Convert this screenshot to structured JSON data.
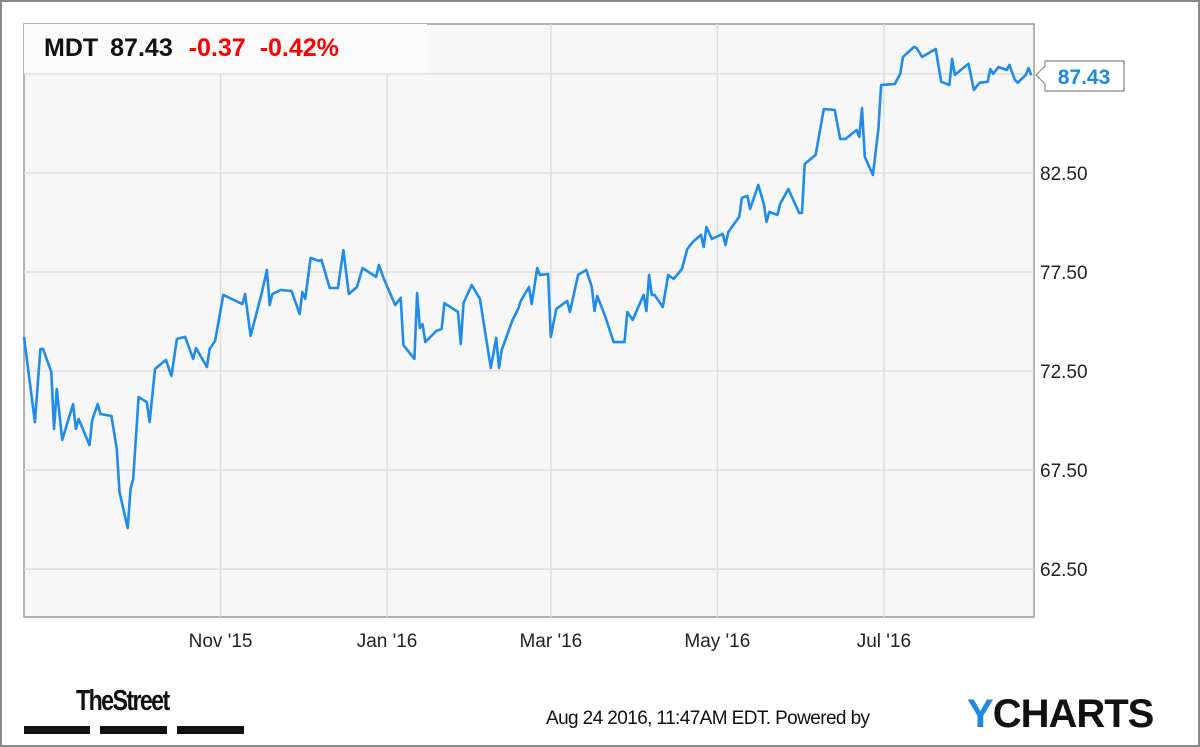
{
  "header": {
    "ticker": "MDT",
    "price": "87.43",
    "change": "-0.37",
    "change_pct": "-0.42%"
  },
  "colors": {
    "line": "#1f8ceb",
    "negative": "#ff0000",
    "plot_bg": "#f7f7f7",
    "grid": "#dddddd",
    "brand_accent": "#1e88e5"
  },
  "footer": {
    "timestamp": "Aug 24 2016, 11:47AM EDT.",
    "powered_by": "Powered by",
    "brand_y": "Y",
    "brand_rest": "CHARTS",
    "source_logo": "TheStreet"
  },
  "chart_data": {
    "type": "line",
    "grid": true,
    "y_axis_side": "right",
    "xlim": [
      "2015-08-21",
      "2016-08-25"
    ],
    "ylim": [
      60.08,
      90.02
    ],
    "x_ticks": [
      {
        "date": "2015-11-01",
        "label": "Nov '15"
      },
      {
        "date": "2016-01-01",
        "label": "Jan '16"
      },
      {
        "date": "2016-03-01",
        "label": "Mar '16"
      },
      {
        "date": "2016-05-01",
        "label": "May '16"
      },
      {
        "date": "2016-07-01",
        "label": "Jul '16"
      }
    ],
    "y_ticks": [
      {
        "value": 62.5,
        "label": "62.50"
      },
      {
        "value": 67.5,
        "label": "67.50"
      },
      {
        "value": 72.5,
        "label": "72.50"
      },
      {
        "value": 77.5,
        "label": "77.50"
      },
      {
        "value": 82.5,
        "label": "82.50"
      },
      {
        "value": 87.5,
        "label": ""
      }
    ],
    "last_value_label": "87.43",
    "series": [
      {
        "points": [
          [
            "2015-08-21",
            74.22
          ],
          [
            "2015-08-25",
            69.92
          ],
          [
            "2015-08-27",
            73.61
          ],
          [
            "2015-08-28",
            73.61
          ],
          [
            "2015-08-31",
            72.45
          ],
          [
            "2015-09-01",
            69.57
          ],
          [
            "2015-09-02",
            71.59
          ],
          [
            "2015-09-04",
            69.02
          ],
          [
            "2015-09-08",
            70.83
          ],
          [
            "2015-09-09",
            69.57
          ],
          [
            "2015-09-10",
            70.08
          ],
          [
            "2015-09-14",
            68.76
          ],
          [
            "2015-09-15",
            70.03
          ],
          [
            "2015-09-17",
            70.83
          ],
          [
            "2015-09-18",
            70.33
          ],
          [
            "2015-09-22",
            70.23
          ],
          [
            "2015-09-24",
            68.56
          ],
          [
            "2015-09-25",
            66.39
          ],
          [
            "2015-09-28",
            64.57
          ],
          [
            "2015-09-29",
            66.54
          ],
          [
            "2015-09-30",
            67.05
          ],
          [
            "2015-10-02",
            71.19
          ],
          [
            "2015-10-05",
            70.93
          ],
          [
            "2015-10-06",
            69.92
          ],
          [
            "2015-10-08",
            72.6
          ],
          [
            "2015-10-12",
            73.06
          ],
          [
            "2015-10-14",
            72.25
          ],
          [
            "2015-10-16",
            74.12
          ],
          [
            "2015-10-19",
            74.22
          ],
          [
            "2015-10-22",
            73.11
          ],
          [
            "2015-10-23",
            73.66
          ],
          [
            "2015-10-27",
            72.7
          ],
          [
            "2015-10-28",
            73.61
          ],
          [
            "2015-10-30",
            74.02
          ],
          [
            "2015-11-02",
            76.34
          ],
          [
            "2015-11-09",
            75.88
          ],
          [
            "2015-11-10",
            76.39
          ],
          [
            "2015-11-12",
            74.27
          ],
          [
            "2015-11-16",
            76.39
          ],
          [
            "2015-11-18",
            77.6
          ],
          [
            "2015-11-19",
            75.83
          ],
          [
            "2015-11-20",
            76.39
          ],
          [
            "2015-11-23",
            76.59
          ],
          [
            "2015-11-27",
            76.54
          ],
          [
            "2015-11-30",
            75.38
          ],
          [
            "2015-12-01",
            76.49
          ],
          [
            "2015-12-02",
            76.14
          ],
          [
            "2015-12-04",
            78.21
          ],
          [
            "2015-12-07",
            78.06
          ],
          [
            "2015-12-08",
            78.11
          ],
          [
            "2015-12-11",
            76.69
          ],
          [
            "2015-12-14",
            76.69
          ],
          [
            "2015-12-16",
            78.61
          ],
          [
            "2015-12-18",
            76.39
          ],
          [
            "2015-12-21",
            76.74
          ],
          [
            "2015-12-23",
            77.7
          ],
          [
            "2015-12-28",
            77.25
          ],
          [
            "2015-12-29",
            77.85
          ],
          [
            "2015-12-31",
            77.1
          ],
          [
            "2016-01-04",
            75.83
          ],
          [
            "2016-01-06",
            76.19
          ],
          [
            "2016-01-07",
            73.81
          ],
          [
            "2016-01-11",
            73.11
          ],
          [
            "2016-01-12",
            76.44
          ],
          [
            "2016-01-13",
            74.67
          ],
          [
            "2016-01-14",
            74.87
          ],
          [
            "2016-01-15",
            73.96
          ],
          [
            "2016-01-19",
            74.52
          ],
          [
            "2016-01-21",
            74.62
          ],
          [
            "2016-01-22",
            75.93
          ],
          [
            "2016-01-27",
            75.48
          ],
          [
            "2016-01-28",
            73.86
          ],
          [
            "2016-01-29",
            75.93
          ],
          [
            "2016-02-01",
            76.84
          ],
          [
            "2016-02-04",
            76.14
          ],
          [
            "2016-02-08",
            72.65
          ],
          [
            "2016-02-10",
            74.17
          ],
          [
            "2016-02-11",
            72.65
          ],
          [
            "2016-02-12",
            73.56
          ],
          [
            "2016-02-16",
            75.08
          ],
          [
            "2016-02-18",
            75.63
          ],
          [
            "2016-02-19",
            76.04
          ],
          [
            "2016-02-22",
            76.74
          ],
          [
            "2016-02-23",
            75.88
          ],
          [
            "2016-02-25",
            77.7
          ],
          [
            "2016-02-26",
            77.35
          ],
          [
            "2016-02-29",
            77.4
          ],
          [
            "2016-03-01",
            74.22
          ],
          [
            "2016-03-03",
            75.63
          ],
          [
            "2016-03-07",
            76.04
          ],
          [
            "2016-03-08",
            75.48
          ],
          [
            "2016-03-11",
            77.35
          ],
          [
            "2016-03-14",
            77.6
          ],
          [
            "2016-03-16",
            76.74
          ],
          [
            "2016-03-17",
            75.53
          ],
          [
            "2016-03-18",
            76.29
          ],
          [
            "2016-03-21",
            75.23
          ],
          [
            "2016-03-24",
            73.96
          ],
          [
            "2016-03-28",
            73.96
          ],
          [
            "2016-03-29",
            75.48
          ],
          [
            "2016-03-31",
            75.08
          ],
          [
            "2016-04-04",
            76.34
          ],
          [
            "2016-04-05",
            75.53
          ],
          [
            "2016-04-06",
            77.35
          ],
          [
            "2016-04-07",
            76.34
          ],
          [
            "2016-04-08",
            76.34
          ],
          [
            "2016-04-11",
            75.73
          ],
          [
            "2016-04-13",
            77.35
          ],
          [
            "2016-04-15",
            77.15
          ],
          [
            "2016-04-18",
            77.65
          ],
          [
            "2016-04-20",
            78.66
          ],
          [
            "2016-04-22",
            79.02
          ],
          [
            "2016-04-25",
            79.37
          ],
          [
            "2016-04-26",
            78.76
          ],
          [
            "2016-04-27",
            79.77
          ],
          [
            "2016-04-29",
            79.17
          ],
          [
            "2016-05-03",
            79.42
          ],
          [
            "2016-05-04",
            78.86
          ],
          [
            "2016-05-05",
            79.52
          ],
          [
            "2016-05-09",
            80.28
          ],
          [
            "2016-05-10",
            81.24
          ],
          [
            "2016-05-12",
            81.34
          ],
          [
            "2016-05-13",
            80.68
          ],
          [
            "2016-05-16",
            81.89
          ],
          [
            "2016-05-18",
            80.93
          ],
          [
            "2016-05-19",
            80.03
          ],
          [
            "2016-05-20",
            80.53
          ],
          [
            "2016-05-23",
            80.38
          ],
          [
            "2016-05-24",
            80.93
          ],
          [
            "2016-05-27",
            81.69
          ],
          [
            "2016-05-31",
            80.48
          ],
          [
            "2016-06-01",
            80.48
          ],
          [
            "2016-06-02",
            82.95
          ],
          [
            "2016-06-06",
            83.41
          ],
          [
            "2016-06-09",
            85.73
          ],
          [
            "2016-06-13",
            85.68
          ],
          [
            "2016-06-15",
            84.22
          ],
          [
            "2016-06-17",
            84.22
          ],
          [
            "2016-06-21",
            84.67
          ],
          [
            "2016-06-22",
            84.32
          ],
          [
            "2016-06-23",
            85.78
          ],
          [
            "2016-06-24",
            83.31
          ],
          [
            "2016-06-27",
            82.4
          ],
          [
            "2016-06-29",
            84.72
          ],
          [
            "2016-06-30",
            86.94
          ],
          [
            "2016-07-05",
            86.99
          ],
          [
            "2016-07-07",
            87.5
          ],
          [
            "2016-07-08",
            88.36
          ],
          [
            "2016-07-12",
            88.86
          ],
          [
            "2016-07-13",
            88.81
          ],
          [
            "2016-07-15",
            88.36
          ],
          [
            "2016-07-20",
            88.76
          ],
          [
            "2016-07-22",
            87.1
          ],
          [
            "2016-07-25",
            86.94
          ],
          [
            "2016-07-26",
            88.26
          ],
          [
            "2016-07-27",
            87.45
          ],
          [
            "2016-08-01",
            88.01
          ],
          [
            "2016-08-03",
            86.69
          ],
          [
            "2016-08-05",
            87.05
          ],
          [
            "2016-08-08",
            87.1
          ],
          [
            "2016-08-09",
            87.75
          ],
          [
            "2016-08-10",
            87.5
          ],
          [
            "2016-08-12",
            87.85
          ],
          [
            "2016-08-15",
            87.7
          ],
          [
            "2016-08-16",
            87.95
          ],
          [
            "2016-08-18",
            87.2
          ],
          [
            "2016-08-19",
            87.05
          ],
          [
            "2016-08-22",
            87.45
          ],
          [
            "2016-08-23",
            87.8
          ],
          [
            "2016-08-24",
            87.43
          ]
        ]
      }
    ]
  }
}
